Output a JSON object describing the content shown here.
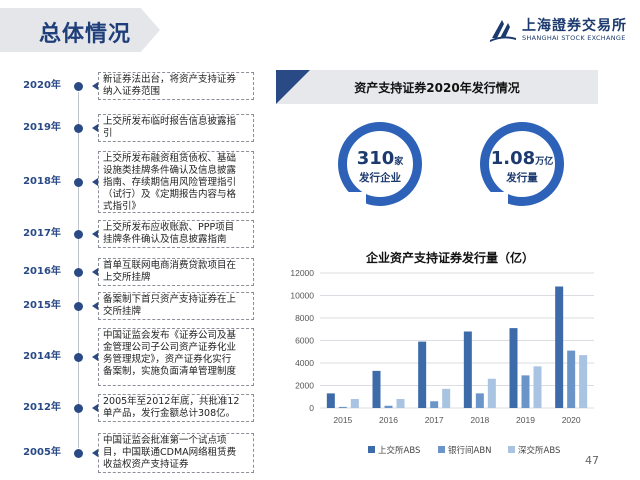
{
  "page": {
    "title": "总体情况",
    "page_number": "47"
  },
  "logo": {
    "name_cn": "上海證券交易所",
    "name_en": "SHANGHAI STOCK EXCHANGE"
  },
  "timeline": [
    {
      "year": "2020年",
      "lines": [
        "新证券法出台，将资产支持证券",
        "纳入证券范围"
      ]
    },
    {
      "year": "2019年",
      "lines": [
        "上交所发布临时报告信息披露指",
        "引"
      ]
    },
    {
      "year": "2018年",
      "lines": [
        "上交所发布融资租赁债权、基础",
        "设施类挂牌条件确认及信息披露",
        "指南、存续期信用风险管理指引",
        "（试行）及《定期报告内容与格",
        "式指引》"
      ]
    },
    {
      "year": "2017年",
      "lines": [
        "上交所发布应收账款、PPP项目",
        "挂牌条件确认及信息披露指南"
      ]
    },
    {
      "year": "2016年",
      "lines": [
        "首单互联网电商消费贷款项目在",
        "上交所挂牌"
      ]
    },
    {
      "year": "2015年",
      "lines": [
        "备案制下首只资产支持证券在上",
        "交所挂牌"
      ]
    },
    {
      "year": "2014年",
      "lines": [
        "中国证监会发布《证券公司及基",
        "金管理公司子公司资产证券化业",
        "务管理规定》，资产证券化实行",
        "备案制，实施负面清单管理制度"
      ]
    },
    {
      "year": "2012年",
      "lines": [
        "2005年至2012年底，共批准12",
        "单产品，发行金额总计308亿。"
      ]
    },
    {
      "year": "2005年",
      "lines": [
        "中国证监会批准第一个试点项",
        "目，中国联通CDMA网络租赁费",
        "收益权资产支持证券"
      ]
    }
  ],
  "right_panel": {
    "header": "资产支持证券2020年发行情况",
    "stats": [
      {
        "value": "310",
        "unit": "家",
        "label": "发行企业"
      },
      {
        "value": "1.08",
        "unit": "万亿",
        "label": "发行量"
      }
    ]
  },
  "colors": {
    "navy": "#1c3a6e",
    "accent_blue": "#2e62b8",
    "series_dark": "#3d6aa8",
    "series_mid": "#6b95c9",
    "series_light": "#a9c3e2"
  },
  "chart_data": {
    "type": "bar",
    "title": "企业资产支持证券发行量（亿）",
    "categories": [
      "2015",
      "2016",
      "2017",
      "2018",
      "2019",
      "2020"
    ],
    "series": [
      {
        "name": "上交所ABS",
        "values": [
          1300,
          3300,
          5900,
          6800,
          7100,
          10800
        ]
      },
      {
        "name": "银行间ABN",
        "values": [
          100,
          200,
          600,
          1300,
          2900,
          5100
        ]
      },
      {
        "name": "深交所ABS",
        "values": [
          800,
          800,
          1700,
          2600,
          3700,
          4700
        ]
      }
    ],
    "ylim": [
      0,
      12000
    ],
    "yticks": [
      0,
      2000,
      4000,
      6000,
      8000,
      10000,
      12000
    ],
    "grid": true,
    "legend": "bottom"
  }
}
